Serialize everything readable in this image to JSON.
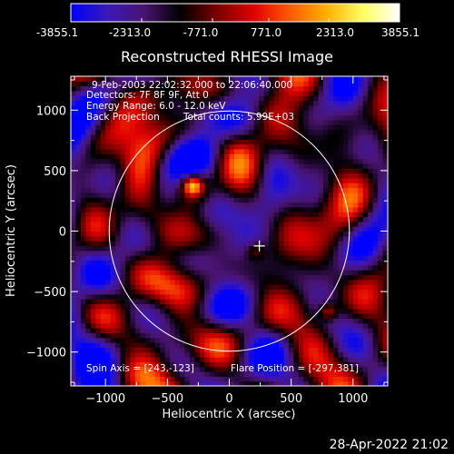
{
  "colorbar": {
    "ticks": [
      "-3855.1",
      "-2313.0",
      "-771.0",
      "771.0",
      "2313.0",
      "3855.1"
    ],
    "min": -3855.1,
    "max": 3855.1,
    "stops": [
      "#0000ff",
      "#3a19b8",
      "#4a1470",
      "#000000",
      "#7a0000",
      "#e00000",
      "#ff5a00",
      "#ffb000",
      "#ffff60",
      "#ffffff"
    ]
  },
  "title": "Reconstructed RHESSI Image",
  "info": {
    "line1": "9-Feb-2003 22:02:32.000 to 22:06:40.000",
    "line2": "Detectors: 7F 8F 9F, Att 0",
    "line3": "Energy Range: 6.0 - 12.0 keV",
    "line4_left": "Back Projection",
    "line4_right": "Total counts: 5.99E+03"
  },
  "footer_info": {
    "spin_axis": "Spin Axis = [243,-123]",
    "flare_position": "Flare Position = [-297,381]"
  },
  "timestamp": "28-Apr-2022 21:02",
  "chart_data": {
    "type": "heatmap",
    "title": "Reconstructed RHESSI Image",
    "xlabel": "Heliocentric X (arcsec)",
    "ylabel": "Heliocentric Y (arcsec)",
    "xlim": [
      -1280,
      1280
    ],
    "ylim": [
      -1280,
      1280
    ],
    "xticks": [
      -1000,
      -500,
      0,
      500,
      1000
    ],
    "xtick_labels": [
      "−1000",
      "−500",
      "0",
      "500",
      "1000"
    ],
    "yticks": [
      -1000,
      -500,
      0,
      500,
      1000
    ],
    "ytick_labels": [
      "−1000",
      "−500",
      "0",
      "500",
      "1000"
    ],
    "solar_disk_radius": 970,
    "spin_axis": [
      243,
      -123
    ],
    "flare_position": [
      -297,
      381
    ],
    "peak_sources": [
      {
        "x": -297,
        "y": 381,
        "intensity": 3855
      },
      {
        "x": 800,
        "y": -660,
        "intensity": 2300
      },
      {
        "x": 210,
        "y": -160,
        "intensity": 1500
      }
    ]
  }
}
